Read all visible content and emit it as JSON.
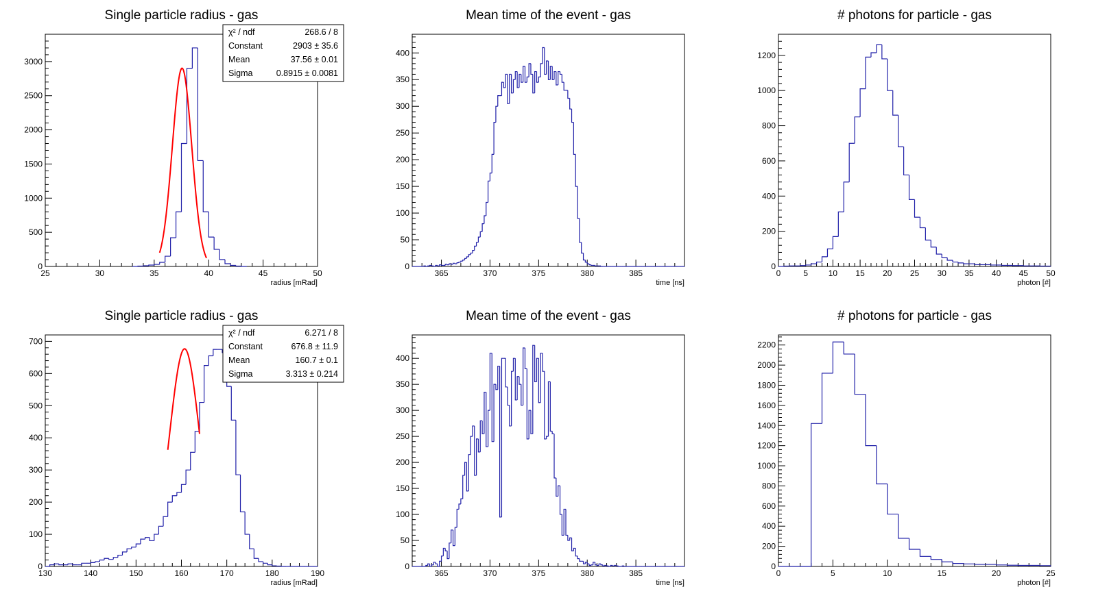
{
  "colors": {
    "histogram": "#1f1fa8",
    "fit": "#ff0000",
    "frame": "#000000",
    "background": "#ffffff"
  },
  "chart_data": [
    {
      "type": "histogram",
      "title": "Single particle radius - gas",
      "xlabel": "radius [mRad]",
      "xlim": [
        25,
        50
      ],
      "ylim": [
        0,
        3400
      ],
      "xticks": [
        25,
        30,
        35,
        40,
        45,
        50
      ],
      "yticks": [
        0,
        500,
        1000,
        1500,
        2000,
        2500,
        3000
      ],
      "bin_edges_start": 33,
      "bin_width": 0.5,
      "values": [
        0,
        5,
        10,
        20,
        30,
        60,
        150,
        420,
        800,
        1800,
        2900,
        3200,
        1550,
        800,
        430,
        250,
        100,
        40,
        15,
        5,
        0
      ],
      "fit": {
        "type": "gaus",
        "constant": 2903,
        "mean": 37.56,
        "sigma": 0.8915,
        "range": [
          35.5,
          39.8
        ]
      },
      "stats_box": [
        {
          "label": "χ² / ndf",
          "value": "268.6 / 8"
        },
        {
          "label": "Constant",
          "value": "2903 ± 35.6"
        },
        {
          "label": "Mean",
          "value": "37.56 ± 0.01"
        },
        {
          "label": "Sigma",
          "value": "0.8915 ± 0.0081"
        }
      ]
    },
    {
      "type": "histogram",
      "title": "Mean time of the event - gas",
      "xlabel": "time [ns]",
      "xlim": [
        362,
        390
      ],
      "ylim": [
        0,
        435
      ],
      "xticks": [
        365,
        370,
        375,
        380,
        385
      ],
      "yticks": [
        0,
        50,
        100,
        150,
        200,
        250,
        300,
        350,
        400
      ],
      "bin_edges_start": 362,
      "bin_width": 0.2,
      "values": [
        0,
        0,
        0,
        0,
        0,
        0,
        1,
        0,
        1,
        2,
        1,
        0,
        2,
        1,
        3,
        2,
        2,
        4,
        3,
        5,
        4,
        6,
        5,
        7,
        8,
        10,
        12,
        15,
        18,
        22,
        25,
        30,
        38,
        45,
        55,
        65,
        80,
        95,
        120,
        160,
        175,
        210,
        270,
        300,
        320,
        320,
        345,
        335,
        360,
        305,
        360,
        325,
        350,
        365,
        335,
        360,
        345,
        375,
        345,
        355,
        380,
        360,
        325,
        365,
        345,
        355,
        380,
        410,
        360,
        385,
        350,
        375,
        350,
        365,
        340,
        365,
        360,
        345,
        330,
        330,
        315,
        295,
        270,
        210,
        150,
        90,
        45,
        25,
        12,
        8,
        5,
        3,
        2,
        2,
        1,
        1,
        1,
        0,
        0,
        0,
        0,
        0,
        0,
        0,
        0,
        0,
        0,
        0,
        0,
        0,
        0,
        0,
        0,
        0,
        0,
        0,
        0,
        0,
        0,
        0,
        0,
        0,
        0,
        0,
        0,
        0,
        0,
        0,
        0,
        0,
        0,
        0,
        0,
        0,
        0,
        0,
        0,
        0,
        0,
        0
      ]
    },
    {
      "type": "histogram",
      "title": "# photons for particle - gas",
      "xlabel": "photon [#]",
      "xlim": [
        0,
        50
      ],
      "ylim": [
        0,
        1320
      ],
      "xticks": [
        0,
        5,
        10,
        15,
        20,
        25,
        30,
        35,
        40,
        45,
        50
      ],
      "yticks": [
        0,
        200,
        400,
        600,
        800,
        1000,
        1200
      ],
      "bin_edges_start": 0,
      "bin_width": 1,
      "values": [
        0,
        2,
        3,
        3,
        5,
        8,
        15,
        25,
        55,
        100,
        170,
        310,
        480,
        700,
        850,
        1010,
        1190,
        1215,
        1260,
        1180,
        1000,
        860,
        680,
        520,
        380,
        280,
        220,
        150,
        110,
        70,
        50,
        35,
        25,
        20,
        15,
        15,
        10,
        10,
        10,
        8,
        8,
        6,
        6,
        5,
        5,
        3,
        3,
        3,
        2,
        2
      ]
    },
    {
      "type": "histogram",
      "title": "Single particle radius - gas",
      "xlabel": "radius [mRad]",
      "xlim": [
        130,
        190
      ],
      "ylim": [
        0,
        720
      ],
      "xticks": [
        130,
        140,
        150,
        160,
        170,
        180,
        190
      ],
      "yticks": [
        0,
        100,
        200,
        300,
        400,
        500,
        600,
        700
      ],
      "bin_edges_start": 130,
      "bin_width": 1,
      "values": [
        0,
        5,
        8,
        5,
        5,
        8,
        5,
        5,
        10,
        10,
        12,
        15,
        20,
        25,
        22,
        28,
        35,
        45,
        55,
        60,
        70,
        85,
        90,
        80,
        100,
        125,
        155,
        200,
        220,
        230,
        255,
        300,
        355,
        420,
        510,
        625,
        655,
        675,
        675,
        665,
        560,
        455,
        285,
        170,
        100,
        55,
        25,
        15,
        10,
        5,
        2,
        1,
        0,
        0,
        0,
        0,
        0,
        0,
        0,
        0
      ],
      "fit": {
        "type": "gaus",
        "constant": 676.8,
        "mean": 160.7,
        "sigma": 3.313,
        "range": [
          157,
          164
        ]
      },
      "stats_box": [
        {
          "label": "χ² / ndf",
          "value": "6.271 / 8"
        },
        {
          "label": "Constant",
          "value": "676.8 ± 11.9"
        },
        {
          "label": "Mean",
          "value": "160.7 ± 0.1"
        },
        {
          "label": "Sigma",
          "value": "3.313 ± 0.214"
        }
      ]
    },
    {
      "type": "histogram",
      "title": "Mean time of the event - gas",
      "xlabel": "time [ns]",
      "xlim": [
        362,
        390
      ],
      "ylim": [
        0,
        445
      ],
      "xticks": [
        365,
        370,
        375,
        380,
        385
      ],
      "yticks": [
        0,
        50,
        100,
        150,
        200,
        250,
        300,
        350,
        400
      ],
      "bin_edges_start": 362,
      "bin_width": 0.2,
      "values": [
        0,
        0,
        0,
        0,
        0,
        0,
        0,
        2,
        5,
        0,
        3,
        8,
        5,
        0,
        10,
        20,
        35,
        30,
        15,
        45,
        70,
        40,
        75,
        110,
        120,
        130,
        175,
        200,
        145,
        215,
        250,
        270,
        175,
        245,
        220,
        280,
        255,
        335,
        230,
        300,
        410,
        240,
        350,
        340,
        385,
        95,
        400,
        400,
        345,
        310,
        270,
        375,
        400,
        320,
        365,
        350,
        310,
        420,
        380,
        245,
        300,
        255,
        425,
        355,
        400,
        315,
        410,
        375,
        245,
        250,
        355,
        260,
        255,
        170,
        135,
        155,
        100,
        60,
        110,
        60,
        50,
        55,
        30,
        35,
        20,
        15,
        10,
        10,
        5,
        8,
        5,
        2,
        3,
        8,
        3,
        2,
        5,
        3,
        1,
        2,
        1,
        0,
        2,
        1,
        2,
        1,
        0,
        0,
        1,
        0,
        0,
        0,
        0,
        0,
        0,
        0,
        0,
        0,
        0,
        0,
        0,
        0,
        0,
        0,
        0,
        0,
        0,
        0,
        0,
        0,
        0,
        0,
        0,
        0,
        0,
        0,
        0,
        0,
        0,
        0
      ]
    },
    {
      "type": "histogram",
      "title": "# photons for particle - gas",
      "xlabel": "photon [#]",
      "xlim": [
        0,
        25
      ],
      "ylim": [
        0,
        2300
      ],
      "xticks": [
        0,
        5,
        10,
        15,
        20,
        25
      ],
      "yticks": [
        0,
        200,
        400,
        600,
        800,
        1000,
        1200,
        1400,
        1600,
        1800,
        2000,
        2200
      ],
      "bin_edges_start": 0,
      "bin_width": 1,
      "values": [
        0,
        0,
        0,
        1420,
        1920,
        2230,
        2110,
        1710,
        1200,
        820,
        520,
        280,
        170,
        100,
        70,
        45,
        30,
        25,
        20,
        20,
        15,
        12,
        10,
        10,
        8
      ]
    }
  ]
}
